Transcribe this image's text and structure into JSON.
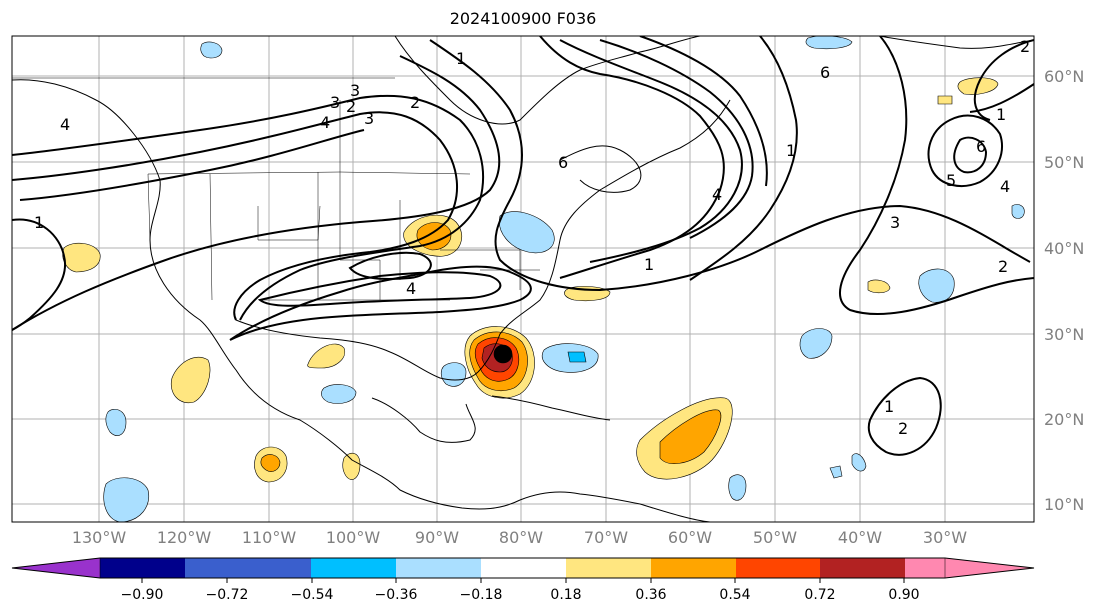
{
  "title": "2024100900 F036",
  "map": {
    "lat_ticks": [
      "60°N",
      "50°N",
      "40°N",
      "30°N",
      "20°N",
      "10°N"
    ],
    "lon_ticks": [
      "130°W",
      "120°W",
      "110°W",
      "100°W",
      "90°W",
      "80°W",
      "70°W",
      "60°W",
      "50°W",
      "40°W",
      "30°W"
    ],
    "contour_labels": [
      "1",
      "2",
      "3",
      "4",
      "6",
      "4",
      "3",
      "2",
      "1",
      "4",
      "1",
      "1",
      "4",
      "3",
      "2",
      "1",
      "6",
      "5",
      "4",
      "1",
      "2",
      "2",
      "6",
      "3"
    ]
  },
  "colorbar": {
    "ticks": [
      "−0.90",
      "−0.72",
      "−0.54",
      "−0.36",
      "−0.18",
      "0.18",
      "0.36",
      "0.54",
      "0.72",
      "0.90"
    ],
    "colors": [
      "#9932cc",
      "#00008b",
      "#3a5fcd",
      "#00bfff",
      "#aadfff",
      "#ffffff",
      "#ffe680",
      "#ffa500",
      "#ff4500",
      "#b22222",
      "#ff88b0"
    ]
  }
}
